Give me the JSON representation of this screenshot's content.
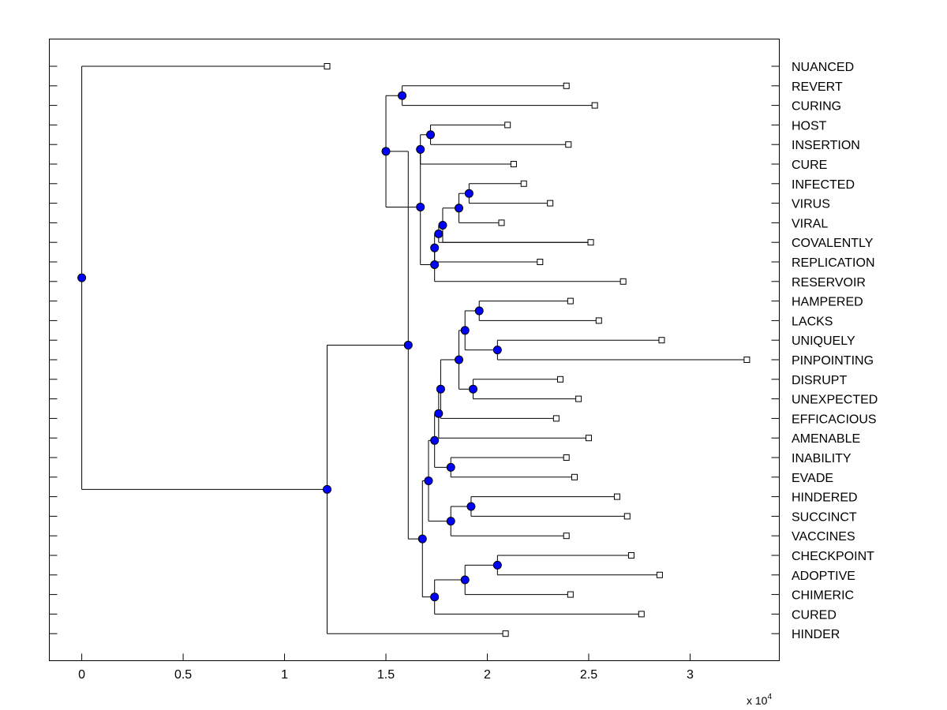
{
  "chart_data": {
    "type": "dendrogram",
    "x_tick_labels": [
      "0",
      "0.5",
      "1",
      "1.5",
      "2",
      "2.5",
      "3"
    ],
    "x_ticks": [
      0,
      0.5,
      1,
      1.5,
      2,
      2.5,
      3
    ],
    "x_scale_label": "x 10",
    "x_scale_exponent": "4",
    "xlim": [
      -0.16,
      3.44
    ],
    "node_color": "#0000ff",
    "leaves": [
      {
        "label": "NUANCED",
        "x": 1.21
      },
      {
        "label": "REVERT",
        "x": 2.39
      },
      {
        "label": "CURING",
        "x": 2.53
      },
      {
        "label": "HOST",
        "x": 2.1
      },
      {
        "label": "INSERTION",
        "x": 2.4
      },
      {
        "label": "CURE",
        "x": 2.13
      },
      {
        "label": "INFECTED",
        "x": 2.18
      },
      {
        "label": "VIRUS",
        "x": 2.31
      },
      {
        "label": "VIRAL",
        "x": 2.07
      },
      {
        "label": "COVALENTLY",
        "x": 2.51
      },
      {
        "label": "REPLICATION",
        "x": 2.26
      },
      {
        "label": "RESERVOIR",
        "x": 2.67
      },
      {
        "label": "HAMPERED",
        "x": 2.41
      },
      {
        "label": "LACKS",
        "x": 2.55
      },
      {
        "label": "UNIQUELY",
        "x": 2.86
      },
      {
        "label": "PINPOINTING",
        "x": 3.28
      },
      {
        "label": "DISRUPT",
        "x": 2.36
      },
      {
        "label": "UNEXPECTED",
        "x": 2.45
      },
      {
        "label": "EFFICACIOUS",
        "x": 2.34
      },
      {
        "label": "AMENABLE",
        "x": 2.5
      },
      {
        "label": "INABILITY",
        "x": 2.39
      },
      {
        "label": "EVADE",
        "x": 2.43
      },
      {
        "label": "HINDERED",
        "x": 2.64
      },
      {
        "label": "SUCCINCT",
        "x": 2.69
      },
      {
        "label": "VACCINES",
        "x": 2.39
      },
      {
        "label": "CHECKPOINT",
        "x": 2.71
      },
      {
        "label": "ADOPTIVE",
        "x": 2.85
      },
      {
        "label": "CHIMERIC",
        "x": 2.41
      },
      {
        "label": "CURED",
        "x": 2.76
      },
      {
        "label": "HINDER",
        "x": 2.09
      }
    ],
    "internal_nodes": [
      {
        "id": "n_revert_curing",
        "x": 1.58,
        "children": [
          1,
          2
        ]
      },
      {
        "id": "n_host_insertion",
        "x": 1.72,
        "children": [
          3,
          4
        ]
      },
      {
        "id": "n_host_cure",
        "x": 1.67,
        "children": [
          "n_host_insertion",
          5
        ]
      },
      {
        "id": "n_infected_virus",
        "x": 1.91,
        "children": [
          6,
          7
        ]
      },
      {
        "id": "n_inf_viral",
        "x": 1.86,
        "children": [
          "n_infected_virus",
          8
        ]
      },
      {
        "id": "n_inf_coval",
        "x": 1.78,
        "children": [
          "n_inf_viral",
          9
        ]
      },
      {
        "id": "n_inf_cov_b",
        "x": 1.76,
        "children": [
          "n_inf_coval",
          9
        ]
      },
      {
        "id": "n_inf_repl",
        "x": 1.74,
        "children": [
          "n_inf_cov_b",
          10
        ]
      },
      {
        "id": "n_inf_reservoir",
        "x": 1.74,
        "children": [
          "n_inf_repl",
          11
        ]
      },
      {
        "id": "n_host_group",
        "x": 1.67,
        "children": [
          "n_host_cure",
          "n_inf_reservoir"
        ]
      },
      {
        "id": "n_revert_group",
        "x": 1.5,
        "children": [
          "n_revert_curing",
          "n_host_group"
        ]
      },
      {
        "id": "n_hampered_lacks",
        "x": 1.96,
        "children": [
          12,
          13
        ]
      },
      {
        "id": "n_uniquely_pin",
        "x": 2.05,
        "children": [
          14,
          15
        ]
      },
      {
        "id": "n_hamp_uniq",
        "x": 1.89,
        "children": [
          "n_hampered_lacks",
          "n_uniquely_pin"
        ]
      },
      {
        "id": "n_disrupt_unexp",
        "x": 1.93,
        "children": [
          16,
          17
        ]
      },
      {
        "id": "n_hamp_disrupt",
        "x": 1.86,
        "children": [
          "n_hamp_uniq",
          "n_disrupt_unexp"
        ]
      },
      {
        "id": "n_hamp_effic",
        "x": 1.77,
        "children": [
          "n_hamp_disrupt",
          18
        ]
      },
      {
        "id": "n_hamp_amen",
        "x": 1.76,
        "children": [
          "n_hamp_effic",
          19
        ]
      },
      {
        "id": "n_inab_evade",
        "x": 1.82,
        "children": [
          20,
          21
        ]
      },
      {
        "id": "n_hamp_inab",
        "x": 1.74,
        "children": [
          "n_hamp_amen",
          "n_inab_evade"
        ]
      },
      {
        "id": "n_hind_succ",
        "x": 1.92,
        "children": [
          22,
          23
        ]
      },
      {
        "id": "n_hind_vacc",
        "x": 1.82,
        "children": [
          "n_hind_succ",
          24
        ]
      },
      {
        "id": "n_hamp_hind",
        "x": 1.71,
        "children": [
          "n_hamp_inab",
          "n_hind_vacc"
        ]
      },
      {
        "id": "n_check_adopt",
        "x": 2.05,
        "children": [
          25,
          26
        ]
      },
      {
        "id": "n_check_chim",
        "x": 1.89,
        "children": [
          "n_check_adopt",
          27
        ]
      },
      {
        "id": "n_check_cured",
        "x": 1.74,
        "children": [
          "n_check_chim",
          28
        ]
      },
      {
        "id": "n_hamp_check",
        "x": 1.68,
        "children": [
          "n_hamp_hind",
          "n_check_cured"
        ]
      },
      {
        "id": "n_big_group",
        "x": 1.61,
        "children": [
          "n_revert_group",
          "n_hamp_check"
        ]
      },
      {
        "id": "n_big_hinder",
        "x": 1.21,
        "children": [
          "n_big_group",
          29
        ]
      },
      {
        "id": "n_root",
        "x": 0.0,
        "children": [
          0,
          "n_big_hinder"
        ]
      }
    ]
  }
}
